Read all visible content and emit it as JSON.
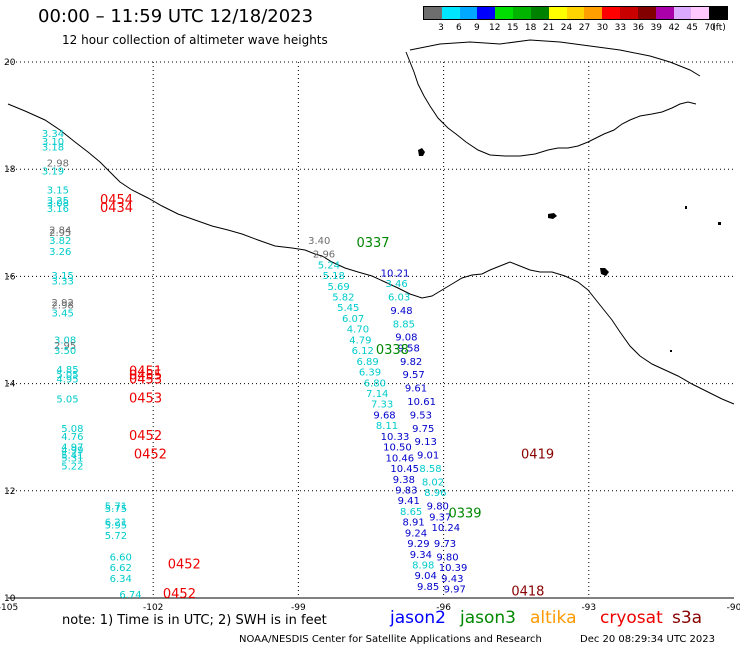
{
  "title": "00:00 – 11:59 UTC 12/18/2023",
  "subtitle": "12 hour collection of altimeter wave heights",
  "colorbar": {
    "unit_label": "(ft)",
    "colors": [
      "#6e6e6e",
      "#00e6ff",
      "#00a8ff",
      "#0000ff",
      "#00dd00",
      "#00b400",
      "#008200",
      "#ffff00",
      "#ffd400",
      "#ffa000",
      "#ff0000",
      "#c80000",
      "#820000",
      "#aa00aa",
      "#dcaaff",
      "#ffc8ff",
      "#000000"
    ],
    "labels": [
      "3",
      "6",
      "9",
      "12",
      "15",
      "18",
      "21",
      "24",
      "27",
      "30",
      "33",
      "36",
      "39",
      "42",
      "45",
      "70"
    ]
  },
  "map": {
    "lon_range": [
      -105,
      -90
    ],
    "lat_range": [
      10,
      20
    ],
    "lon_ticks": [
      "-105",
      "-102",
      "-99",
      "-96",
      "-93",
      "-90"
    ],
    "lat_ticks": [
      "20",
      "18",
      "16",
      "14",
      "12",
      "10"
    ]
  },
  "wave_heights": [
    {
      "lat": 18.6,
      "lon": -104.3,
      "value": "3.34",
      "color": "#00cccc"
    },
    {
      "lat": 18.45,
      "lon": -104.3,
      "value": "3.10",
      "color": "#00cccc"
    },
    {
      "lat": 18.35,
      "lon": -104.3,
      "value": "3.18",
      "color": "#00cccc"
    },
    {
      "lat": 18.05,
      "lon": -104.2,
      "value": "2.98",
      "color": "#6e6e6e"
    },
    {
      "lat": 17.9,
      "lon": -104.3,
      "value": "3.19",
      "color": "#00cccc"
    },
    {
      "lat": 17.55,
      "lon": -104.2,
      "value": "3.15",
      "color": "#00cccc"
    },
    {
      "lat": 17.35,
      "lon": -104.2,
      "value": "3.25",
      "color": "#00cccc"
    },
    {
      "lat": 17.3,
      "lon": -104.2,
      "value": "3.08",
      "color": "#00cccc"
    },
    {
      "lat": 17.2,
      "lon": -104.2,
      "value": "3.16",
      "color": "#00cccc"
    },
    {
      "lat": 16.8,
      "lon": -104.15,
      "value": "2.84",
      "color": "#6e6e6e"
    },
    {
      "lat": 16.75,
      "lon": -104.15,
      "value": "2.95",
      "color": "#6e6e6e"
    },
    {
      "lat": 16.6,
      "lon": -104.15,
      "value": "3.82",
      "color": "#00cccc"
    },
    {
      "lat": 16.4,
      "lon": -104.15,
      "value": "3.26",
      "color": "#00cccc"
    },
    {
      "lat": 15.95,
      "lon": -104.1,
      "value": "3.15",
      "color": "#00cccc"
    },
    {
      "lat": 15.85,
      "lon": -104.1,
      "value": "3.33",
      "color": "#00cccc"
    },
    {
      "lat": 15.45,
      "lon": -104.1,
      "value": "2.92",
      "color": "#6e6e6e"
    },
    {
      "lat": 15.4,
      "lon": -104.1,
      "value": "2.98",
      "color": "#6e6e6e"
    },
    {
      "lat": 15.25,
      "lon": -104.1,
      "value": "3.45",
      "color": "#00cccc"
    },
    {
      "lat": 14.75,
      "lon": -104.05,
      "value": "3.08",
      "color": "#00cccc"
    },
    {
      "lat": 14.65,
      "lon": -104.05,
      "value": "2.95",
      "color": "#6e6e6e"
    },
    {
      "lat": 14.55,
      "lon": -104.05,
      "value": "3.50",
      "color": "#00cccc"
    },
    {
      "lat": 14.2,
      "lon": -104.0,
      "value": "4.85",
      "color": "#00cccc"
    },
    {
      "lat": 14.1,
      "lon": -104.0,
      "value": "5.05",
      "color": "#00cccc"
    },
    {
      "lat": 14.02,
      "lon": -104.0,
      "value": "4.95",
      "color": "#00cccc"
    },
    {
      "lat": 13.65,
      "lon": -104.0,
      "value": "5.05",
      "color": "#00cccc"
    },
    {
      "lat": 13.1,
      "lon": -103.9,
      "value": "5.08",
      "color": "#00cccc"
    },
    {
      "lat": 12.95,
      "lon": -103.9,
      "value": "4.76",
      "color": "#00cccc"
    },
    {
      "lat": 12.75,
      "lon": -103.9,
      "value": "4.97",
      "color": "#00cccc"
    },
    {
      "lat": 12.7,
      "lon": -103.9,
      "value": "4.99",
      "color": "#00cccc"
    },
    {
      "lat": 12.6,
      "lon": -103.9,
      "value": "5.41",
      "color": "#00cccc"
    },
    {
      "lat": 12.55,
      "lon": -103.9,
      "value": "5.31",
      "color": "#00cccc"
    },
    {
      "lat": 12.4,
      "lon": -103.9,
      "value": "5.22",
      "color": "#00cccc"
    },
    {
      "lat": 11.65,
      "lon": -103.0,
      "value": "5.71",
      "color": "#00cccc"
    },
    {
      "lat": 11.6,
      "lon": -103.0,
      "value": "5.75",
      "color": "#00cccc"
    },
    {
      "lat": 11.35,
      "lon": -103.0,
      "value": "6.21",
      "color": "#00cccc"
    },
    {
      "lat": 11.3,
      "lon": -103.0,
      "value": "5.95",
      "color": "#00cccc"
    },
    {
      "lat": 11.1,
      "lon": -103.0,
      "value": "5.72",
      "color": "#00cccc"
    },
    {
      "lat": 10.7,
      "lon": -102.9,
      "value": "6.60",
      "color": "#00cccc"
    },
    {
      "lat": 10.5,
      "lon": -102.9,
      "value": "6.62",
      "color": "#00cccc"
    },
    {
      "lat": 10.3,
      "lon": -102.9,
      "value": "6.34",
      "color": "#00cccc"
    },
    {
      "lat": 10.0,
      "lon": -102.7,
      "value": "6.74",
      "color": "#00cccc"
    },
    {
      "lat": 16.6,
      "lon": -98.8,
      "value": "3.40",
      "color": "#6e6e6e"
    },
    {
      "lat": 16.35,
      "lon": -98.7,
      "value": "2.96",
      "color": "#6e6e6e"
    },
    {
      "lat": 16.15,
      "lon": -98.6,
      "value": "5.24",
      "color": "#00cccc"
    },
    {
      "lat": 15.95,
      "lon": -98.5,
      "value": "5.18",
      "color": "#00cccc"
    },
    {
      "lat": 15.75,
      "lon": -98.4,
      "value": "5.69",
      "color": "#00cccc"
    },
    {
      "lat": 15.55,
      "lon": -98.3,
      "value": "5.82",
      "color": "#00cccc"
    },
    {
      "lat": 15.35,
      "lon": -98.2,
      "value": "5.45",
      "color": "#00cccc"
    },
    {
      "lat": 15.15,
      "lon": -98.1,
      "value": "6.07",
      "color": "#00cccc"
    },
    {
      "lat": 14.95,
      "lon": -98.0,
      "value": "4.70",
      "color": "#00cccc"
    },
    {
      "lat": 14.75,
      "lon": -97.95,
      "value": "4.79",
      "color": "#00cccc"
    },
    {
      "lat": 14.55,
      "lon": -97.9,
      "value": "6.12",
      "color": "#00cccc"
    },
    {
      "lat": 14.35,
      "lon": -97.8,
      "value": "6.89",
      "color": "#00cccc"
    },
    {
      "lat": 14.15,
      "lon": -97.75,
      "value": "6.39",
      "color": "#00cccc"
    },
    {
      "lat": 13.95,
      "lon": -97.65,
      "value": "6.80",
      "color": "#00cccc"
    },
    {
      "lat": 13.75,
      "lon": -97.6,
      "value": "7.14",
      "color": "#00cccc"
    },
    {
      "lat": 13.55,
      "lon": -97.5,
      "value": "7.33",
      "color": "#00cccc"
    },
    {
      "lat": 13.35,
      "lon": -97.45,
      "value": "9.68",
      "color": "#0000cc"
    },
    {
      "lat": 13.15,
      "lon": -97.4,
      "value": "8.11",
      "color": "#00cccc"
    },
    {
      "lat": 12.95,
      "lon": -97.3,
      "value": "10.33",
      "color": "#0000cc"
    },
    {
      "lat": 12.75,
      "lon": -97.25,
      "value": "10.50",
      "color": "#0000cc"
    },
    {
      "lat": 12.55,
      "lon": -97.2,
      "value": "10.46",
      "color": "#0000cc"
    },
    {
      "lat": 12.35,
      "lon": -97.1,
      "value": "10.45",
      "color": "#0000cc"
    },
    {
      "lat": 12.15,
      "lon": -97.05,
      "value": "9.38",
      "color": "#0000cc"
    },
    {
      "lat": 11.95,
      "lon": -97.0,
      "value": "9.83",
      "color": "#0000cc"
    },
    {
      "lat": 11.75,
      "lon": -96.95,
      "value": "9.41",
      "color": "#0000cc"
    },
    {
      "lat": 11.55,
      "lon": -96.9,
      "value": "8.65",
      "color": "#00cccc"
    },
    {
      "lat": 11.35,
      "lon": -96.85,
      "value": "8.91",
      "color": "#0000cc"
    },
    {
      "lat": 11.15,
      "lon": -96.8,
      "value": "9.24",
      "color": "#0000cc"
    },
    {
      "lat": 10.95,
      "lon": -96.75,
      "value": "9.29",
      "color": "#0000cc"
    },
    {
      "lat": 10.75,
      "lon": -96.7,
      "value": "9.34",
      "color": "#0000cc"
    },
    {
      "lat": 10.55,
      "lon": -96.65,
      "value": "8.98",
      "color": "#00cccc"
    },
    {
      "lat": 10.35,
      "lon": -96.6,
      "value": "9.04",
      "color": "#0000cc"
    },
    {
      "lat": 10.15,
      "lon": -96.55,
      "value": "9.85",
      "color": "#0000cc"
    },
    {
      "lat": 16.0,
      "lon": -97.3,
      "value": "10.21",
      "color": "#0000cc"
    },
    {
      "lat": 15.8,
      "lon": -97.2,
      "value": "3.46",
      "color": "#00cccc"
    },
    {
      "lat": 15.55,
      "lon": -97.15,
      "value": "6.03",
      "color": "#00cccc"
    },
    {
      "lat": 15.3,
      "lon": -97.1,
      "value": "9.48",
      "color": "#0000cc"
    },
    {
      "lat": 15.05,
      "lon": -97.05,
      "value": "8.85",
      "color": "#00cccc"
    },
    {
      "lat": 14.8,
      "lon": -97.0,
      "value": "9.08",
      "color": "#0000cc"
    },
    {
      "lat": 14.6,
      "lon": -96.95,
      "value": "9.58",
      "color": "#0000cc"
    },
    {
      "lat": 14.35,
      "lon": -96.9,
      "value": "9.82",
      "color": "#0000cc"
    },
    {
      "lat": 14.1,
      "lon": -96.85,
      "value": "9.57",
      "color": "#0000cc"
    },
    {
      "lat": 13.85,
      "lon": -96.8,
      "value": "9.61",
      "color": "#0000cc"
    },
    {
      "lat": 13.6,
      "lon": -96.75,
      "value": "10.61",
      "color": "#0000cc"
    },
    {
      "lat": 13.35,
      "lon": -96.7,
      "value": "9.53",
      "color": "#0000cc"
    },
    {
      "lat": 13.1,
      "lon": -96.65,
      "value": "9.75",
      "color": "#0000cc"
    },
    {
      "lat": 12.85,
      "lon": -96.6,
      "value": "9.13",
      "color": "#0000cc"
    },
    {
      "lat": 12.6,
      "lon": -96.55,
      "value": "9.01",
      "color": "#0000cc"
    },
    {
      "lat": 12.35,
      "lon": -96.5,
      "value": "8.58",
      "color": "#00cccc"
    },
    {
      "lat": 12.1,
      "lon": -96.45,
      "value": "8.02",
      "color": "#00cccc"
    },
    {
      "lat": 11.9,
      "lon": -96.4,
      "value": "8.96",
      "color": "#00cccc"
    },
    {
      "lat": 11.65,
      "lon": -96.35,
      "value": "9.80",
      "color": "#0000cc"
    },
    {
      "lat": 11.45,
      "lon": -96.3,
      "value": "9.37",
      "color": "#0000cc"
    },
    {
      "lat": 11.25,
      "lon": -96.25,
      "value": "10.24",
      "color": "#0000cc"
    },
    {
      "lat": 10.95,
      "lon": -96.2,
      "value": "9.73",
      "color": "#0000cc"
    },
    {
      "lat": 10.7,
      "lon": -96.15,
      "value": "9.80",
      "color": "#0000cc"
    },
    {
      "lat": 10.5,
      "lon": -96.1,
      "value": "10.39",
      "color": "#0000cc"
    },
    {
      "lat": 10.3,
      "lon": -96.05,
      "value": "9.43",
      "color": "#0000cc"
    },
    {
      "lat": 10.1,
      "lon": -96.0,
      "value": "9.97",
      "color": "#0000cc"
    }
  ],
  "pass_times": [
    {
      "lat": 17.35,
      "lon": -103.1,
      "value": "0454",
      "color": "#ee0000"
    },
    {
      "lat": 17.2,
      "lon": -103.1,
      "value": "0434",
      "color": "#ee0000"
    },
    {
      "lat": 14.15,
      "lon": -102.5,
      "value": "0451",
      "color": "#ee0000"
    },
    {
      "lat": 14.08,
      "lon": -102.5,
      "value": "0455",
      "color": "#ee0000"
    },
    {
      "lat": 14.0,
      "lon": -102.5,
      "value": "0453",
      "color": "#ee0000"
    },
    {
      "lat": 13.65,
      "lon": -102.5,
      "value": "0453",
      "color": "#ee0000"
    },
    {
      "lat": 12.95,
      "lon": -102.5,
      "value": "0452",
      "color": "#ee0000"
    },
    {
      "lat": 12.6,
      "lon": -102.4,
      "value": "0452",
      "color": "#ee0000"
    },
    {
      "lat": 10.55,
      "lon": -101.7,
      "value": "0452",
      "color": "#ee0000"
    },
    {
      "lat": 10.0,
      "lon": -101.8,
      "value": "0452",
      "color": "#ee0000"
    },
    {
      "lat": 16.55,
      "lon": -97.8,
      "value": "0337",
      "color": "#008800"
    },
    {
      "lat": 14.55,
      "lon": -97.4,
      "value": "0338",
      "color": "#008800"
    },
    {
      "lat": 11.5,
      "lon": -95.9,
      "value": "0339",
      "color": "#008800"
    },
    {
      "lat": 12.6,
      "lon": -94.4,
      "value": "0419",
      "color": "#880000"
    },
    {
      "lat": 10.05,
      "lon": -94.6,
      "value": "0418",
      "color": "#880000"
    }
  ],
  "note": "note:  1) Time is in UTC;  2) SWH is in feet",
  "legend": [
    {
      "label": "jason2",
      "color": "#0000ff"
    },
    {
      "label": "jason3",
      "color": "#008800"
    },
    {
      "label": "altika",
      "color": "#ff9900"
    },
    {
      "label": "cryosat",
      "color": "#ee0000"
    },
    {
      "label": "s3a",
      "color": "#880000"
    }
  ],
  "credit": "NOAA/NESDIS Center for Satellite Applications and Research",
  "timestamp": "Dec 20 08:29:34 UTC 2023"
}
